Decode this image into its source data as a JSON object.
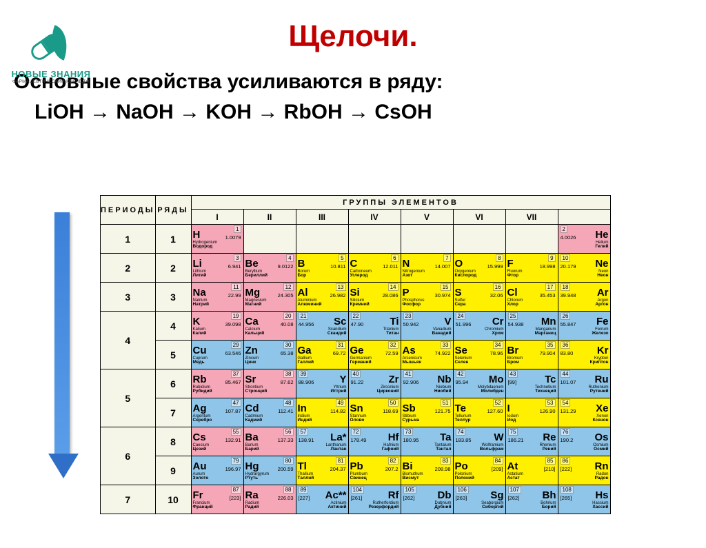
{
  "logo": {
    "brand": "НОВЫЕ ЗНАНИЯ",
    "sub": "ФАРМАЦЕВТИЧЕСКИЙ КОЛЛЕДЖ"
  },
  "title": "Щелочи.",
  "statement": "Основные  свойства усиливаются в ряду:",
  "series": "LiOH → NaOH → KOH → RbOH → CsOH",
  "headers": {
    "periods": "ПЕРИОДЫ",
    "rows": "РЯДЫ",
    "groups_title": "ГРУППЫ ЭЛЕМЕНТОВ",
    "groups": [
      "I",
      "II",
      "III",
      "IV",
      "V",
      "VI",
      "VII",
      ""
    ]
  },
  "colors": {
    "pink": "#f5a7b8",
    "yellow": "#fff000",
    "blue": "#8fc5e8",
    "beige": "#f5f5e8",
    "title": "#c00000",
    "arrow": "#3b7fd9"
  },
  "periods": [
    {
      "p": "1",
      "rows": [
        {
          "r": "1",
          "cells": [
            {
              "sym": "H",
              "num": "1",
              "mass": "1.0079",
              "lat": "Hydrogenium",
              "ru": "Водород",
              "c": "pink",
              "a": "left"
            },
            null,
            null,
            null,
            null,
            null,
            null,
            {
              "sym": "He",
              "num": "2",
              "mass": "4.0026",
              "lat": "Helium",
              "ru": "Гелий",
              "c": "pink",
              "a": "right"
            }
          ]
        }
      ]
    },
    {
      "p": "2",
      "rows": [
        {
          "r": "2",
          "cells": [
            {
              "sym": "Li",
              "num": "3",
              "mass": "6.941",
              "lat": "Lithium",
              "ru": "Литий",
              "c": "pink",
              "a": "left"
            },
            {
              "sym": "Be",
              "num": "4",
              "mass": "9.0122",
              "lat": "Beryllium",
              "ru": "Бериллий",
              "c": "pink",
              "a": "left"
            },
            {
              "sym": "B",
              "num": "5",
              "mass": "10.811",
              "lat": "Borum",
              "ru": "Бор",
              "c": "yellow",
              "a": "left"
            },
            {
              "sym": "C",
              "num": "6",
              "mass": "12.011",
              "lat": "Carboneum",
              "ru": "Углерод",
              "c": "yellow",
              "a": "left"
            },
            {
              "sym": "N",
              "num": "7",
              "mass": "14.007",
              "lat": "Nitrogenium",
              "ru": "Азот",
              "c": "yellow",
              "a": "left"
            },
            {
              "sym": "O",
              "num": "8",
              "mass": "15.999",
              "lat": "Oxygenium",
              "ru": "Кислород",
              "c": "yellow",
              "a": "left"
            },
            {
              "sym": "F",
              "num": "9",
              "mass": "18.998",
              "lat": "Fluorum",
              "ru": "Фтор",
              "c": "yellow",
              "a": "left"
            },
            {
              "sym": "Ne",
              "num": "10",
              "mass": "20.179",
              "lat": "Neon",
              "ru": "Неон",
              "c": "yellow",
              "a": "right"
            }
          ]
        }
      ]
    },
    {
      "p": "3",
      "rows": [
        {
          "r": "3",
          "cells": [
            {
              "sym": "Na",
              "num": "11",
              "mass": "22.99",
              "lat": "Natrium",
              "ru": "Натрий",
              "c": "pink",
              "a": "left"
            },
            {
              "sym": "Mg",
              "num": "12",
              "mass": "24.305",
              "lat": "Magnesium",
              "ru": "Магний",
              "c": "pink",
              "a": "left"
            },
            {
              "sym": "Al",
              "num": "13",
              "mass": "26.982",
              "lat": "Aluminium",
              "ru": "Алюминий",
              "c": "yellow",
              "a": "left"
            },
            {
              "sym": "Si",
              "num": "14",
              "mass": "28.086",
              "lat": "Silicium",
              "ru": "Кремний",
              "c": "yellow",
              "a": "left"
            },
            {
              "sym": "P",
              "num": "15",
              "mass": "30.974",
              "lat": "Phosphorus",
              "ru": "Фосфор",
              "c": "yellow",
              "a": "left"
            },
            {
              "sym": "S",
              "num": "16",
              "mass": "32.06",
              "lat": "Sulfur",
              "ru": "Сера",
              "c": "yellow",
              "a": "left"
            },
            {
              "sym": "Cl",
              "num": "17",
              "mass": "35.453",
              "lat": "Chlorum",
              "ru": "Хлор",
              "c": "yellow",
              "a": "left"
            },
            {
              "sym": "Ar",
              "num": "18",
              "mass": "39.948",
              "lat": "Argon",
              "ru": "Аргон",
              "c": "yellow",
              "a": "right"
            }
          ]
        }
      ]
    },
    {
      "p": "4",
      "rows": [
        {
          "r": "4",
          "cells": [
            {
              "sym": "K",
              "num": "19",
              "mass": "39.098",
              "lat": "Kalium",
              "ru": "Калий",
              "c": "pink",
              "a": "left"
            },
            {
              "sym": "Ca",
              "num": "20",
              "mass": "40.08",
              "lat": "Calcium",
              "ru": "Кальций",
              "c": "pink",
              "a": "left"
            },
            {
              "sym": "Sc",
              "num": "21",
              "mass": "44.956",
              "lat": "Scandium",
              "ru": "Скандий",
              "c": "blue",
              "a": "right"
            },
            {
              "sym": "Ti",
              "num": "22",
              "mass": "47.90",
              "lat": "Titanium",
              "ru": "Титан",
              "c": "blue",
              "a": "right"
            },
            {
              "sym": "V",
              "num": "23",
              "mass": "50.942",
              "lat": "Vanadium",
              "ru": "Ванадий",
              "c": "blue",
              "a": "right"
            },
            {
              "sym": "Cr",
              "num": "24",
              "mass": "51.996",
              "lat": "Chromium",
              "ru": "Хром",
              "c": "blue",
              "a": "right"
            },
            {
              "sym": "Mn",
              "num": "25",
              "mass": "54.938",
              "lat": "Manganum",
              "ru": "Марганец",
              "c": "blue",
              "a": "right"
            },
            {
              "sym": "Fe",
              "num": "26",
              "mass": "55.847",
              "lat": "Ferrum",
              "ru": "Железо",
              "c": "blue",
              "a": "right"
            }
          ]
        },
        {
          "r": "5",
          "cells": [
            {
              "sym": "Cu",
              "num": "29",
              "mass": "63.546",
              "lat": "Cuprum",
              "ru": "Медь",
              "c": "blue",
              "a": "left"
            },
            {
              "sym": "Zn",
              "num": "30",
              "mass": "65.38",
              "lat": "Zincum",
              "ru": "Цинк",
              "c": "blue",
              "a": "left"
            },
            {
              "sym": "Ga",
              "num": "31",
              "mass": "69.72",
              "lat": "Gallium",
              "ru": "Галлий",
              "c": "yellow",
              "a": "left"
            },
            {
              "sym": "Ge",
              "num": "32",
              "mass": "72.59",
              "lat": "Germanium",
              "ru": "Германий",
              "c": "yellow",
              "a": "left"
            },
            {
              "sym": "As",
              "num": "33",
              "mass": "74.922",
              "lat": "Arsenicum",
              "ru": "Мышьяк",
              "c": "yellow",
              "a": "left"
            },
            {
              "sym": "Se",
              "num": "34",
              "mass": "78.96",
              "lat": "Selenium",
              "ru": "Селен",
              "c": "yellow",
              "a": "left"
            },
            {
              "sym": "Br",
              "num": "35",
              "mass": "79.904",
              "lat": "Bromum",
              "ru": "Бром",
              "c": "yellow",
              "a": "left"
            },
            {
              "sym": "Kr",
              "num": "36",
              "mass": "83.80",
              "lat": "Krypton",
              "ru": "Криптон",
              "c": "yellow",
              "a": "right"
            }
          ]
        }
      ]
    },
    {
      "p": "5",
      "rows": [
        {
          "r": "6",
          "cells": [
            {
              "sym": "Rb",
              "num": "37",
              "mass": "85.467",
              "lat": "Rubidium",
              "ru": "Рубидий",
              "c": "pink",
              "a": "left"
            },
            {
              "sym": "Sr",
              "num": "38",
              "mass": "87.62",
              "lat": "Strontium",
              "ru": "Стронций",
              "c": "pink",
              "a": "left"
            },
            {
              "sym": "Y",
              "num": "39",
              "mass": "88.906",
              "lat": "Yttrium",
              "ru": "Иттрий",
              "c": "blue",
              "a": "right"
            },
            {
              "sym": "Zr",
              "num": "40",
              "mass": "91.22",
              "lat": "Zirconium",
              "ru": "Цирконий",
              "c": "blue",
              "a": "right"
            },
            {
              "sym": "Nb",
              "num": "41",
              "mass": "92.906",
              "lat": "Niobium",
              "ru": "Ниобий",
              "c": "blue",
              "a": "right"
            },
            {
              "sym": "Mo",
              "num": "42",
              "mass": "95.94",
              "lat": "Molybdaenum",
              "ru": "Молибден",
              "c": "blue",
              "a": "right"
            },
            {
              "sym": "Tc",
              "num": "43",
              "mass": "[99]",
              "lat": "Technetium",
              "ru": "Технеций",
              "c": "blue",
              "a": "right"
            },
            {
              "sym": "Ru",
              "num": "44",
              "mass": "101.07",
              "lat": "Ruthenium",
              "ru": "Рутений",
              "c": "blue",
              "a": "right"
            }
          ]
        },
        {
          "r": "7",
          "cells": [
            {
              "sym": "Ag",
              "num": "47",
              "mass": "107.87",
              "lat": "Argentum",
              "ru": "Серебро",
              "c": "blue",
              "a": "left"
            },
            {
              "sym": "Cd",
              "num": "48",
              "mass": "112.41",
              "lat": "Cadmium",
              "ru": "Кадмий",
              "c": "blue",
              "a": "left"
            },
            {
              "sym": "In",
              "num": "49",
              "mass": "114.82",
              "lat": "Indium",
              "ru": "Индий",
              "c": "yellow",
              "a": "left"
            },
            {
              "sym": "Sn",
              "num": "50",
              "mass": "118.69",
              "lat": "Stannum",
              "ru": "Олово",
              "c": "yellow",
              "a": "left"
            },
            {
              "sym": "Sb",
              "num": "51",
              "mass": "121.75",
              "lat": "Stibium",
              "ru": "Сурьма",
              "c": "yellow",
              "a": "left"
            },
            {
              "sym": "Te",
              "num": "52",
              "mass": "127.60",
              "lat": "Tellurium",
              "ru": "Теллур",
              "c": "yellow",
              "a": "left"
            },
            {
              "sym": "I",
              "num": "53",
              "mass": "126.90",
              "lat": "Iodum",
              "ru": "Иод",
              "c": "yellow",
              "a": "left"
            },
            {
              "sym": "Xe",
              "num": "54",
              "mass": "131.29",
              "lat": "Xenon",
              "ru": "Ксенон",
              "c": "yellow",
              "a": "right"
            }
          ]
        }
      ]
    },
    {
      "p": "6",
      "rows": [
        {
          "r": "8",
          "cells": [
            {
              "sym": "Cs",
              "num": "55",
              "mass": "132.91",
              "lat": "Caesium",
              "ru": "Цезий",
              "c": "pink",
              "a": "left"
            },
            {
              "sym": "Ba",
              "num": "56",
              "mass": "137.33",
              "lat": "Barium",
              "ru": "Барий",
              "c": "pink",
              "a": "left"
            },
            {
              "sym": "La*",
              "num": "57",
              "mass": "138.91",
              "lat": "Lanthanum",
              "ru": "Лантан",
              "c": "blue",
              "a": "right"
            },
            {
              "sym": "Hf",
              "num": "72",
              "mass": "178.49",
              "lat": "Hafnium",
              "ru": "Гафний",
              "c": "blue",
              "a": "right"
            },
            {
              "sym": "Ta",
              "num": "73",
              "mass": "180.95",
              "lat": "Tantalum",
              "ru": "Тантал",
              "c": "blue",
              "a": "right"
            },
            {
              "sym": "W",
              "num": "74",
              "mass": "183.85",
              "lat": "Wolframium",
              "ru": "Вольфрам",
              "c": "blue",
              "a": "right"
            },
            {
              "sym": "Re",
              "num": "75",
              "mass": "186.21",
              "lat": "Rhenium",
              "ru": "Рений",
              "c": "blue",
              "a": "right"
            },
            {
              "sym": "Os",
              "num": "76",
              "mass": "190.2",
              "lat": "Osmium",
              "ru": "Осмий",
              "c": "blue",
              "a": "right"
            }
          ]
        },
        {
          "r": "9",
          "cells": [
            {
              "sym": "Au",
              "num": "79",
              "mass": "196.97",
              "lat": "Aurum",
              "ru": "Золото",
              "c": "blue",
              "a": "left"
            },
            {
              "sym": "Hg",
              "num": "80",
              "mass": "200.59",
              "lat": "Hydrargyrum",
              "ru": "Ртуть",
              "c": "blue",
              "a": "left"
            },
            {
              "sym": "Tl",
              "num": "81",
              "mass": "204.37",
              "lat": "Thallium",
              "ru": "Таллий",
              "c": "yellow",
              "a": "left"
            },
            {
              "sym": "Pb",
              "num": "82",
              "mass": "207.2",
              "lat": "Plumbum",
              "ru": "Свинец",
              "c": "yellow",
              "a": "left"
            },
            {
              "sym": "Bi",
              "num": "83",
              "mass": "208.98",
              "lat": "Bismuthum",
              "ru": "Висмут",
              "c": "yellow",
              "a": "left"
            },
            {
              "sym": "Po",
              "num": "84",
              "mass": "[209]",
              "lat": "Polonium",
              "ru": "Полоний",
              "c": "yellow",
              "a": "left"
            },
            {
              "sym": "At",
              "num": "85",
              "mass": "[210]",
              "lat": "Astatium",
              "ru": "Астат",
              "c": "yellow",
              "a": "left"
            },
            {
              "sym": "Rn",
              "num": "86",
              "mass": "[222]",
              "lat": "Radon",
              "ru": "Радон",
              "c": "yellow",
              "a": "right"
            }
          ]
        }
      ]
    },
    {
      "p": "7",
      "rows": [
        {
          "r": "10",
          "cells": [
            {
              "sym": "Fr",
              "num": "87",
              "mass": "[223]",
              "lat": "Francium",
              "ru": "Франций",
              "c": "pink",
              "a": "left"
            },
            {
              "sym": "Ra",
              "num": "88",
              "mass": "226.03",
              "lat": "Radium",
              "ru": "Радий",
              "c": "pink",
              "a": "left"
            },
            {
              "sym": "Ac**",
              "num": "89",
              "mass": "[227]",
              "lat": "Actinium",
              "ru": "Актиний",
              "c": "blue",
              "a": "right"
            },
            {
              "sym": "Rf",
              "num": "104",
              "mass": "[261]",
              "lat": "Rutherfordium",
              "ru": "Резерфордий",
              "c": "blue",
              "a": "right"
            },
            {
              "sym": "Db",
              "num": "105",
              "mass": "[262]",
              "lat": "Dubnium",
              "ru": "Дубний",
              "c": "blue",
              "a": "right"
            },
            {
              "sym": "Sg",
              "num": "106",
              "mass": "[263]",
              "lat": "Seaborgium",
              "ru": "Сиборгий",
              "c": "blue",
              "a": "right"
            },
            {
              "sym": "Bh",
              "num": "107",
              "mass": "[262]",
              "lat": "Bohrium",
              "ru": "Борий",
              "c": "blue",
              "a": "right"
            },
            {
              "sym": "Hs",
              "num": "108",
              "mass": "[265]",
              "lat": "Hassium",
              "ru": "Хассий",
              "c": "blue",
              "a": "right"
            }
          ]
        }
      ]
    }
  ]
}
